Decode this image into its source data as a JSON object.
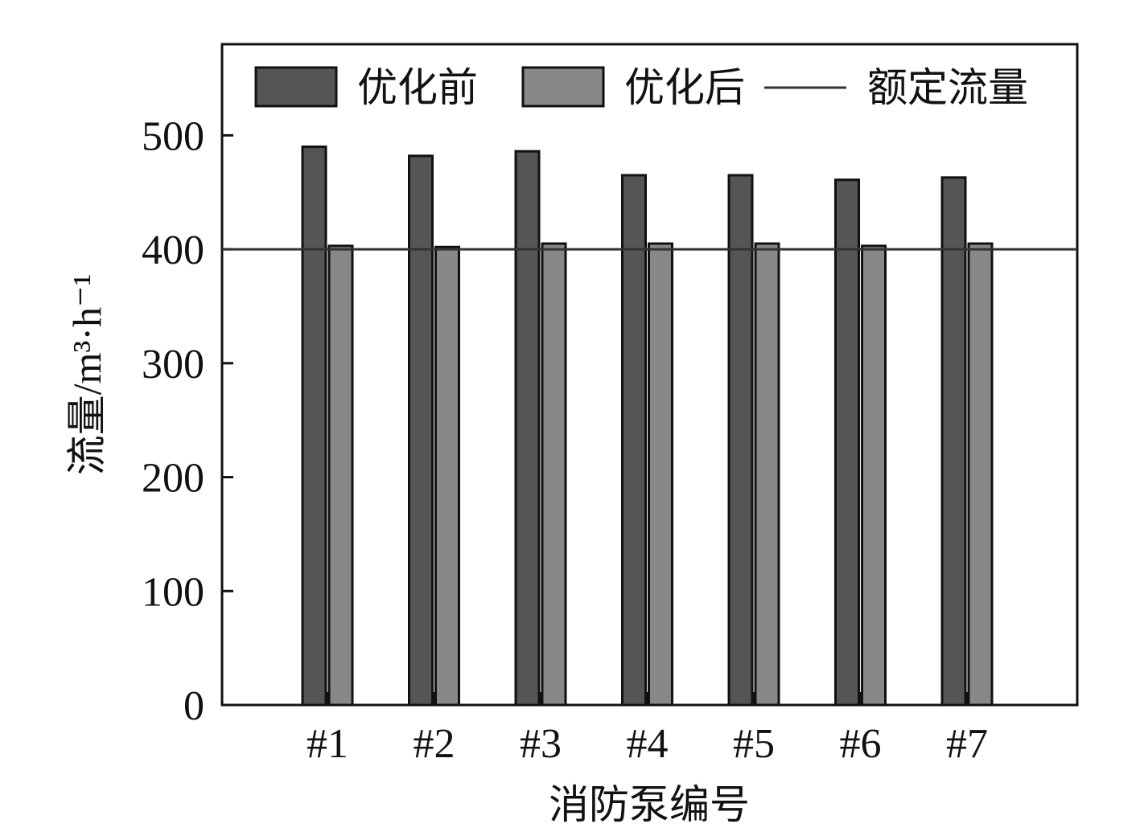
{
  "chart_data": {
    "type": "bar",
    "title": "",
    "xlabel": "消防泵编号",
    "ylabel": "流量/m³·h⁻¹",
    "categories": [
      "#1",
      "#2",
      "#3",
      "#4",
      "#5",
      "#6",
      "#7"
    ],
    "series": [
      {
        "name": "优化前",
        "values": [
          490,
          482,
          486,
          465,
          465,
          461,
          463
        ],
        "color": "#555555"
      },
      {
        "name": "优化后",
        "values": [
          403,
          402,
          405,
          405,
          405,
          403,
          405
        ],
        "color": "#888888"
      }
    ],
    "reference_line": {
      "name": "额定流量",
      "value": 400,
      "color": "#333333"
    },
    "ylim": [
      0,
      580
    ],
    "yticks": [
      0,
      100,
      200,
      300,
      400,
      500
    ],
    "grid": false,
    "legend_position": "top"
  }
}
